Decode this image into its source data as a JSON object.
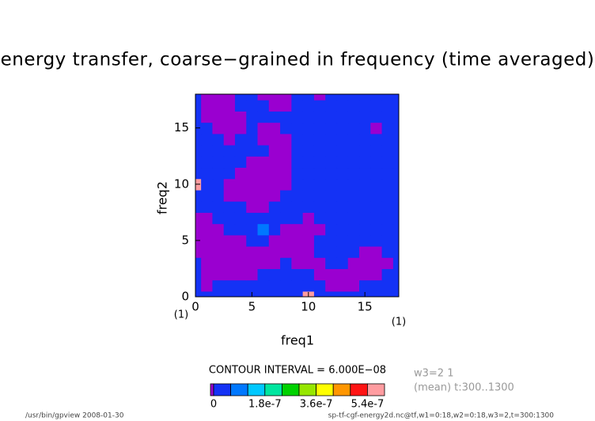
{
  "chart_data": {
    "type": "contour",
    "title": "energy transfer, coarse−grained in frequency (time averaged)",
    "xlabel": "freq1",
    "ylabel": "freq2",
    "xunit": "(1)",
    "yunit": "(1)",
    "xlim": [
      0,
      18
    ],
    "ylim": [
      0,
      18
    ],
    "xticks": [
      0,
      5,
      10,
      15
    ],
    "yticks": [
      0,
      5,
      10,
      15
    ],
    "contour_interval_text": "CONTOUR INTERVAL = 6.000E−08",
    "info": [
      "w3=2 1",
      "(mean) t:300..1300"
    ],
    "footer_left": "/usr/bin/gpview  2008-01-30",
    "footer_right": "sp-tf-cgf-energy2d.nc@tf,w1=0:18,w2=0:18,w3=2,t=300:1300",
    "levels": [
      0,
      6e-08,
      1.2e-07,
      1.8e-07,
      2.4e-07,
      3e-07,
      3.6e-07,
      4.2e-07,
      4.8e-07,
      5.4e-07
    ],
    "colors": [
      "#9a00d0",
      "#1432f5",
      "#0078ff",
      "#00c8ff",
      "#00e6a0",
      "#00d200",
      "#96e600",
      "#ffff00",
      "#ff9600",
      "#ff1414",
      "#ff9ca0"
    ],
    "colorbar_ticks": [
      0,
      1.8e-07,
      3.6e-07,
      5.4e-07
    ],
    "z": [
      [
        3e-08,
        3e-08,
        3e-08,
        3e-08,
        3e-08,
        3e-08,
        3e-08,
        3e-08,
        3e-08,
        3e-08,
        5.7e-07,
        3e-08,
        3e-08,
        3e-08,
        3e-08,
        3e-08,
        3e-08,
        3e-08,
        3e-08
      ],
      [
        3e-08,
        -1e-08,
        3e-08,
        3e-08,
        3e-08,
        3e-08,
        3e-08,
        3e-08,
        3e-08,
        3e-08,
        3e-08,
        3e-08,
        -1e-08,
        -1e-08,
        -1e-08,
        3e-08,
        3e-08,
        3e-08,
        3e-08
      ],
      [
        3e-08,
        -1e-08,
        -1e-08,
        -1e-08,
        -1e-08,
        -1e-08,
        3e-08,
        3e-08,
        3e-08,
        3e-08,
        3e-08,
        -1e-08,
        -1e-08,
        -1e-08,
        -1e-08,
        -1e-08,
        -1e-08,
        3e-08,
        3e-08
      ],
      [
        3e-08,
        -1e-08,
        -1e-08,
        -1e-08,
        -1e-08,
        -1e-08,
        -1e-08,
        -1e-08,
        3e-08,
        -1e-08,
        -1e-08,
        -1e-08,
        3e-08,
        3e-08,
        -1e-08,
        -1e-08,
        -1e-08,
        -1e-08,
        3e-08
      ],
      [
        -1e-08,
        -1e-08,
        -1e-08,
        -1e-08,
        -1e-08,
        -1e-08,
        -1e-08,
        -1e-08,
        -1e-08,
        -1e-08,
        -1e-08,
        3e-08,
        3e-08,
        3e-08,
        3e-08,
        -1e-08,
        -1e-08,
        3e-08,
        3e-08
      ],
      [
        -1e-08,
        -1e-08,
        -1e-08,
        -1e-08,
        -1e-08,
        3e-08,
        3e-08,
        -1e-08,
        -1e-08,
        -1e-08,
        -1e-08,
        3e-08,
        3e-08,
        3e-08,
        3e-08,
        3e-08,
        3e-08,
        3e-08,
        3e-08
      ],
      [
        -1e-08,
        -1e-08,
        -1e-08,
        3e-08,
        3e-08,
        3e-08,
        9e-08,
        3e-08,
        -1e-08,
        -1e-08,
        -1e-08,
        -1e-08,
        3e-08,
        3e-08,
        3e-08,
        3e-08,
        3e-08,
        3e-08,
        3e-08
      ],
      [
        -1e-08,
        -1e-08,
        3e-08,
        3e-08,
        3e-08,
        3e-08,
        3e-08,
        3e-08,
        3e-08,
        3e-08,
        -1e-08,
        3e-08,
        3e-08,
        3e-08,
        3e-08,
        3e-08,
        3e-08,
        3e-08,
        3e-08
      ],
      [
        3e-08,
        3e-08,
        3e-08,
        3e-08,
        3e-08,
        -1e-08,
        -1e-08,
        3e-08,
        3e-08,
        3e-08,
        3e-08,
        3e-08,
        3e-08,
        3e-08,
        3e-08,
        3e-08,
        3e-08,
        3e-08,
        3e-08
      ],
      [
        3e-08,
        3e-08,
        3e-08,
        -1e-08,
        -1e-08,
        -1e-08,
        -1e-08,
        -1e-08,
        3e-08,
        3e-08,
        3e-08,
        3e-08,
        3e-08,
        3e-08,
        3e-08,
        3e-08,
        3e-08,
        3e-08,
        3e-08
      ],
      [
        5.7e-07,
        3e-08,
        3e-08,
        -1e-08,
        -1e-08,
        -1e-08,
        -1e-08,
        -1e-08,
        -1e-08,
        3e-08,
        3e-08,
        3e-08,
        3e-08,
        3e-08,
        3e-08,
        3e-08,
        3e-08,
        3e-08,
        3e-08
      ],
      [
        3e-08,
        3e-08,
        3e-08,
        3e-08,
        -1e-08,
        -1e-08,
        -1e-08,
        -1e-08,
        -1e-08,
        3e-08,
        3e-08,
        3e-08,
        3e-08,
        3e-08,
        3e-08,
        3e-08,
        3e-08,
        3e-08,
        3e-08
      ],
      [
        3e-08,
        3e-08,
        3e-08,
        3e-08,
        3e-08,
        -1e-08,
        -1e-08,
        -1e-08,
        -1e-08,
        3e-08,
        3e-08,
        3e-08,
        3e-08,
        3e-08,
        3e-08,
        3e-08,
        3e-08,
        3e-08,
        3e-08
      ],
      [
        3e-08,
        3e-08,
        3e-08,
        3e-08,
        3e-08,
        3e-08,
        3e-08,
        -1e-08,
        -1e-08,
        3e-08,
        3e-08,
        3e-08,
        3e-08,
        3e-08,
        3e-08,
        3e-08,
        3e-08,
        3e-08,
        3e-08
      ],
      [
        3e-08,
        3e-08,
        3e-08,
        -1e-08,
        3e-08,
        3e-08,
        -1e-08,
        -1e-08,
        -1e-08,
        3e-08,
        3e-08,
        3e-08,
        3e-08,
        3e-08,
        3e-08,
        3e-08,
        3e-08,
        3e-08,
        3e-08
      ],
      [
        3e-08,
        3e-08,
        -1e-08,
        -1e-08,
        -1e-08,
        3e-08,
        -1e-08,
        -1e-08,
        3e-08,
        3e-08,
        3e-08,
        3e-08,
        3e-08,
        3e-08,
        3e-08,
        3e-08,
        -1e-08,
        3e-08,
        3e-08
      ],
      [
        3e-08,
        -1e-08,
        -1e-08,
        -1e-08,
        -1e-08,
        3e-08,
        3e-08,
        3e-08,
        3e-08,
        3e-08,
        3e-08,
        3e-08,
        3e-08,
        3e-08,
        3e-08,
        3e-08,
        3e-08,
        3e-08,
        3e-08
      ],
      [
        3e-08,
        -1e-08,
        -1e-08,
        -1e-08,
        3e-08,
        3e-08,
        3e-08,
        -1e-08,
        -1e-08,
        3e-08,
        3e-08,
        3e-08,
        3e-08,
        3e-08,
        3e-08,
        3e-08,
        3e-08,
        3e-08,
        3e-08
      ],
      [
        3e-08,
        -1e-08,
        -1e-08,
        -1e-08,
        3e-08,
        3e-08,
        -1e-08,
        -1e-08,
        -1e-08,
        3e-08,
        3e-08,
        -1e-08,
        3e-08,
        3e-08,
        3e-08,
        3e-08,
        3e-08,
        3e-08,
        3e-08
      ]
    ]
  }
}
